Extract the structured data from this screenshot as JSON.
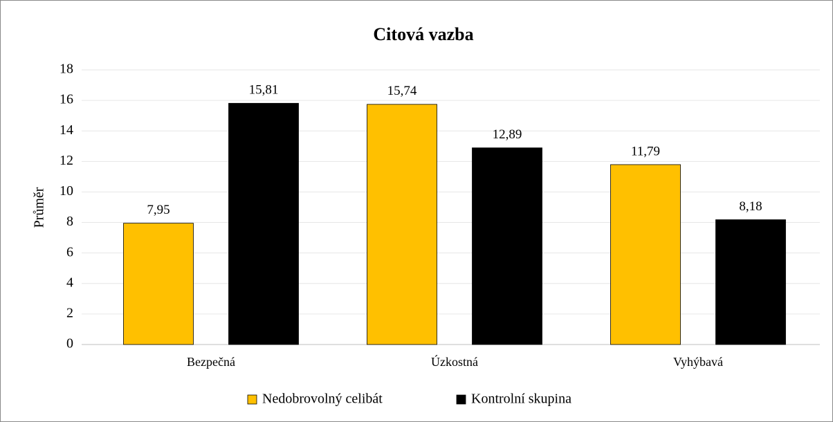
{
  "chart_data": {
    "type": "bar",
    "title": "Citová vazba",
    "ylabel": "Průměr",
    "categories": [
      "Bezpečná",
      "Úzkostná",
      "Vyhýbavá"
    ],
    "series": [
      {
        "name": "Nedobrovolný celibát",
        "color": "#ffc000",
        "values": [
          7.95,
          15.74,
          11.79
        ],
        "value_labels": [
          "7,95",
          "15,74",
          "11,79"
        ]
      },
      {
        "name": "Kontrolní skupina",
        "color": "#000000",
        "values": [
          15.81,
          12.89,
          8.18
        ],
        "value_labels": [
          "15,81",
          "12,89",
          "8,18"
        ]
      }
    ],
    "ylim": [
      0,
      18
    ],
    "yticks": [
      0,
      2,
      4,
      6,
      8,
      10,
      12,
      14,
      16,
      18
    ],
    "grid": true,
    "legend": "bottom"
  }
}
